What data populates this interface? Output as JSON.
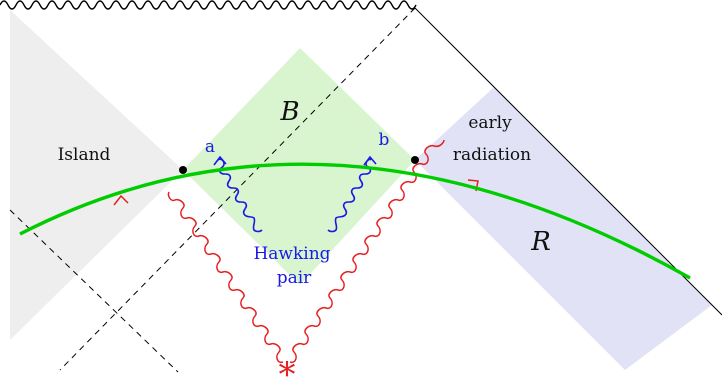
{
  "labels": {
    "island": "Island",
    "region_b": "B",
    "point_a": "a",
    "point_b": "b",
    "early_radiation_line1": "early",
    "early_radiation_line2": "radiation",
    "region_r": "R",
    "hawking_line1": "Hawking",
    "hawking_line2": "pair"
  },
  "markers": {
    "source": "*"
  },
  "colors": {
    "island_fill": "#eeeeee",
    "region_b_fill": "#d8f5d0",
    "region_r_fill": "#e2e2f7",
    "cauchy_slice": "#00cc00",
    "hawking_pair": "#1a1ae6",
    "signal": "#e62020",
    "text": "#111111"
  }
}
